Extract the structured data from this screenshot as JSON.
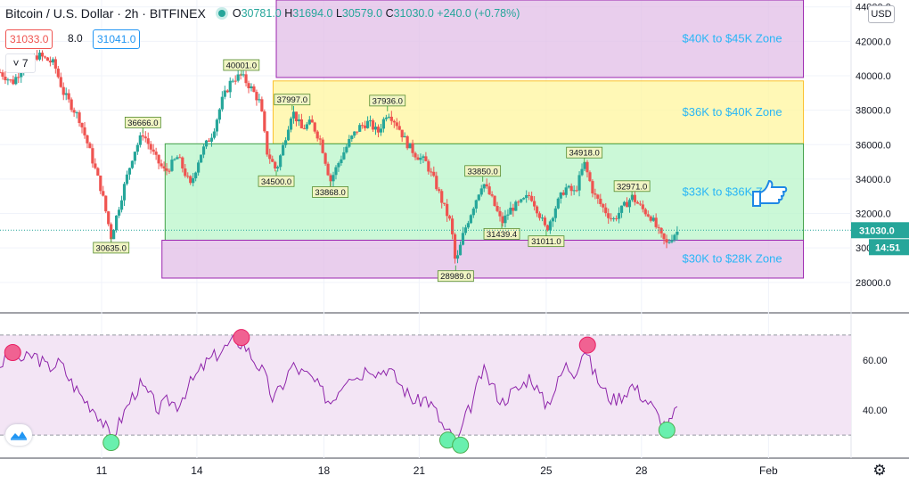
{
  "header": {
    "symbol_title": "Bitcoin / U.S. Dollar · 2h · BITFINEX",
    "open_label": "O",
    "open": "30781.0",
    "high_label": "H",
    "high": "31694.0",
    "low_label": "L",
    "low": "30579.0",
    "close_label": "C",
    "close": "31030.0",
    "change": "+240.0 (+0.78%)",
    "sell_price": "31033.0",
    "spread": "8.0",
    "buy_price": "31041.0",
    "interval": "7",
    "currency": "USD",
    "icons": [
      "live-dot-icon",
      "chevron-down-icon",
      "tradingview-logo-icon",
      "settings-icon"
    ]
  },
  "colors": {
    "up": "#26a69a",
    "down": "#ef5350",
    "zone_purple": "#e1bee7",
    "zone_yellow": "#fff59d",
    "zone_green": "#b9f6ca",
    "zone_text": "#29b6f6",
    "rsi_line": "#8e24aa",
    "rsi_band": "#f3e5f5",
    "red_marker": "#f06292",
    "green_marker": "#69f0ae",
    "hand_icon": "#1e88e5"
  },
  "chart_data": [
    {
      "type": "candlestick",
      "title": "",
      "y_axis_ticks": [
        28000,
        30000,
        32000,
        34000,
        36000,
        38000,
        40000,
        42000,
        44000
      ],
      "ylim": [
        26800,
        44400
      ],
      "x_axis_ticks": [
        {
          "label": "11",
          "day": 11
        },
        {
          "label": "14",
          "day": 14
        },
        {
          "label": "18",
          "day": 18
        },
        {
          "label": "21",
          "day": 21
        },
        {
          "label": "25",
          "day": 25
        },
        {
          "label": "28",
          "day": 28
        },
        {
          "label": "Feb",
          "day": 32
        }
      ],
      "xlim_days": [
        7.8,
        34.6
      ],
      "price_path": [
        [
          7.8,
          40200
        ],
        [
          8.2,
          39600
        ],
        [
          8.5,
          40500
        ],
        [
          9.0,
          41200
        ],
        [
          9.5,
          40700
        ],
        [
          9.8,
          39000
        ],
        [
          10.3,
          37500
        ],
        [
          10.6,
          35800
        ],
        [
          11.0,
          33300
        ],
        [
          11.3,
          30635
        ],
        [
          11.7,
          33500
        ],
        [
          12.0,
          35500
        ],
        [
          12.3,
          36666
        ],
        [
          12.7,
          35200
        ],
        [
          13.0,
          34400
        ],
        [
          13.4,
          35300
        ],
        [
          13.8,
          33600
        ],
        [
          14.1,
          35400
        ],
        [
          14.5,
          36700
        ],
        [
          14.8,
          38600
        ],
        [
          15.1,
          39800
        ],
        [
          15.4,
          40001
        ],
        [
          15.7,
          39300
        ],
        [
          16.0,
          38400
        ],
        [
          16.2,
          35600
        ],
        [
          16.5,
          34500
        ],
        [
          16.7,
          35800
        ],
        [
          17.0,
          37997
        ],
        [
          17.3,
          36900
        ],
        [
          17.6,
          37300
        ],
        [
          17.9,
          36200
        ],
        [
          18.2,
          33868
        ],
        [
          18.5,
          35100
        ],
        [
          18.8,
          36200
        ],
        [
          19.1,
          37000
        ],
        [
          19.4,
          37300
        ],
        [
          19.7,
          36700
        ],
        [
          20.0,
          37936
        ],
        [
          20.3,
          37200
        ],
        [
          20.6,
          36100
        ],
        [
          20.9,
          35400
        ],
        [
          21.2,
          35000
        ],
        [
          21.5,
          33800
        ],
        [
          21.8,
          32300
        ],
        [
          22.0,
          31400
        ],
        [
          22.15,
          28989
        ],
        [
          22.4,
          30900
        ],
        [
          22.7,
          32400
        ],
        [
          23.0,
          33850
        ],
        [
          23.3,
          32800
        ],
        [
          23.6,
          31439.4
        ],
        [
          23.9,
          32300
        ],
        [
          24.2,
          32600
        ],
        [
          24.5,
          33100
        ],
        [
          24.8,
          31900
        ],
        [
          25.0,
          31011
        ],
        [
          25.3,
          32400
        ],
        [
          25.6,
          33500
        ],
        [
          25.9,
          33200
        ],
        [
          26.2,
          34918
        ],
        [
          26.5,
          33100
        ],
        [
          26.8,
          32300
        ],
        [
          27.1,
          31600
        ],
        [
          27.4,
          32300
        ],
        [
          27.7,
          32971
        ],
        [
          28.0,
          32300
        ],
        [
          28.3,
          31800
        ],
        [
          28.6,
          30700
        ],
        [
          28.8,
          30200
        ],
        [
          29.0,
          30781
        ],
        [
          29.2,
          31030
        ]
      ],
      "last_price": "31030.0",
      "countdown": "14:51",
      "price_labels": [
        {
          "text": "40001.0",
          "day": 15.4,
          "price": 40001
        },
        {
          "text": "37997.0",
          "day": 17.0,
          "price": 37997
        },
        {
          "text": "37936.0",
          "day": 20.0,
          "price": 37936
        },
        {
          "text": "36666.0",
          "day": 12.3,
          "price": 36666
        },
        {
          "text": "34500.0",
          "day": 16.5,
          "price": 34500
        },
        {
          "text": "33868.0",
          "day": 18.2,
          "price": 33868
        },
        {
          "text": "33850.0",
          "day": 23.0,
          "price": 33850
        },
        {
          "text": "34918.0",
          "day": 26.2,
          "price": 34918
        },
        {
          "text": "32971.0",
          "day": 27.7,
          "price": 32971
        },
        {
          "text": "31439.4",
          "day": 23.6,
          "price": 31439.4
        },
        {
          "text": "31011.0",
          "day": 25.0,
          "price": 31011
        },
        {
          "text": "30635.0",
          "day": 11.3,
          "price": 30635
        },
        {
          "text": "28989.0",
          "day": 22.15,
          "price": 28989
        }
      ],
      "zones": [
        {
          "label": "$40K to $45K Zone",
          "y_from": 39900,
          "y_to": 44400,
          "day_from": 16.5,
          "day_to": 33.1,
          "fill": "#e1bee7",
          "stroke": "#9c27b0"
        },
        {
          "label": "$36K to $40K Zone",
          "y_from": 36050,
          "y_to": 39700,
          "day_from": 16.4,
          "day_to": 33.1,
          "fill": "#fff59d",
          "stroke": "#fbc02d"
        },
        {
          "label": "$33K to $36K Zone",
          "y_from": 30450,
          "y_to": 36050,
          "day_from": 13.0,
          "day_to": 33.1,
          "fill": "#b9f6ca",
          "stroke": "#43a047"
        },
        {
          "label": "$30K to $28K Zone",
          "y_from": 28250,
          "y_to": 30450,
          "day_from": 12.9,
          "day_to": 33.1,
          "fill": "#e1bee7",
          "stroke": "#9c27b0"
        }
      ]
    },
    {
      "type": "line",
      "title": "",
      "y_axis_ticks": [
        40,
        60
      ],
      "ylim": [
        21.5,
        78.5
      ],
      "band": [
        30,
        70
      ],
      "rsi_path": [
        [
          7.8,
          58
        ],
        [
          8.2,
          63
        ],
        [
          8.5,
          60
        ],
        [
          8.9,
          62
        ],
        [
          9.3,
          57
        ],
        [
          9.7,
          59
        ],
        [
          10.0,
          52
        ],
        [
          10.4,
          45
        ],
        [
          10.8,
          40
        ],
        [
          11.1,
          34
        ],
        [
          11.3,
          28
        ],
        [
          11.6,
          36
        ],
        [
          11.9,
          44
        ],
        [
          12.2,
          50
        ],
        [
          12.5,
          46
        ],
        [
          12.8,
          40
        ],
        [
          13.1,
          44
        ],
        [
          13.4,
          42
        ],
        [
          13.7,
          49
        ],
        [
          14.0,
          54
        ],
        [
          14.3,
          59
        ],
        [
          14.6,
          62
        ],
        [
          14.9,
          65
        ],
        [
          15.2,
          68
        ],
        [
          15.5,
          66
        ],
        [
          15.8,
          60
        ],
        [
          16.1,
          55
        ],
        [
          16.4,
          44
        ],
        [
          16.7,
          50
        ],
        [
          17.0,
          58
        ],
        [
          17.3,
          55
        ],
        [
          17.6,
          53
        ],
        [
          17.9,
          48
        ],
        [
          18.2,
          43
        ],
        [
          18.5,
          49
        ],
        [
          18.8,
          55
        ],
        [
          19.1,
          53
        ],
        [
          19.4,
          58
        ],
        [
          19.7,
          55
        ],
        [
          20.0,
          57
        ],
        [
          20.3,
          52
        ],
        [
          20.6,
          47
        ],
        [
          20.9,
          43
        ],
        [
          21.2,
          45
        ],
        [
          21.5,
          40
        ],
        [
          21.8,
          32
        ],
        [
          22.0,
          30
        ],
        [
          22.2,
          26
        ],
        [
          22.4,
          35
        ],
        [
          22.7,
          44
        ],
        [
          23.0,
          56
        ],
        [
          23.3,
          50
        ],
        [
          23.6,
          43
        ],
        [
          23.9,
          47
        ],
        [
          24.2,
          49
        ],
        [
          24.5,
          54
        ],
        [
          24.8,
          46
        ],
        [
          25.0,
          42
        ],
        [
          25.3,
          49
        ],
        [
          25.6,
          58
        ],
        [
          25.9,
          55
        ],
        [
          26.2,
          65
        ],
        [
          26.5,
          55
        ],
        [
          26.8,
          48
        ],
        [
          27.1,
          44
        ],
        [
          27.4,
          46
        ],
        [
          27.7,
          50
        ],
        [
          28.0,
          46
        ],
        [
          28.3,
          42
        ],
        [
          28.6,
          36
        ],
        [
          28.8,
          33
        ],
        [
          29.0,
          37
        ],
        [
          29.2,
          43
        ]
      ],
      "red_markers": [
        {
          "day": 8.2,
          "value": 63
        },
        {
          "day": 15.4,
          "value": 69
        },
        {
          "day": 26.3,
          "value": 66
        }
      ],
      "green_markers": [
        {
          "day": 11.3,
          "value": 27
        },
        {
          "day": 21.9,
          "value": 28
        },
        {
          "day": 22.3,
          "value": 26
        },
        {
          "day": 28.8,
          "value": 32
        }
      ]
    }
  ]
}
